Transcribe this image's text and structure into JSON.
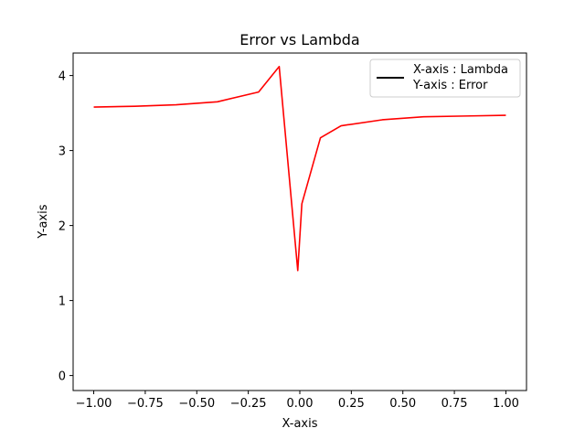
{
  "chart_data": {
    "type": "line",
    "title": "Error vs Lambda",
    "xlabel": "X-axis",
    "ylabel": "Y-axis",
    "xlim": [
      -1.1,
      1.1
    ],
    "ylim": [
      -0.2,
      4.3
    ],
    "xticks": [
      -1.0,
      -0.75,
      -0.5,
      -0.25,
      0.0,
      0.25,
      0.5,
      0.75,
      1.0
    ],
    "xtick_labels": [
      "−1.00",
      "−0.75",
      "−0.50",
      "−0.25",
      "0.00",
      "0.25",
      "0.50",
      "0.75",
      "1.00"
    ],
    "yticks": [
      0,
      1,
      2,
      3,
      4
    ],
    "ytick_labels": [
      "0",
      "1",
      "2",
      "3",
      "4"
    ],
    "grid": false,
    "legend": {
      "placement": "top-right",
      "entries": [
        {
          "line1": "X-axis : Lambda",
          "line2": "Y-axis : Error",
          "color": "#000000"
        }
      ]
    },
    "series": [
      {
        "color": "#ff0000",
        "x": [
          -1.0,
          -0.8,
          -0.6,
          -0.4,
          -0.2,
          -0.1,
          -0.01,
          0.01,
          0.1,
          0.2,
          0.4,
          0.6,
          0.8,
          1.0
        ],
        "y": [
          3.58,
          3.59,
          3.61,
          3.65,
          3.78,
          4.12,
          1.4,
          2.29,
          3.17,
          3.33,
          3.41,
          3.45,
          3.46,
          3.47
        ]
      }
    ]
  }
}
